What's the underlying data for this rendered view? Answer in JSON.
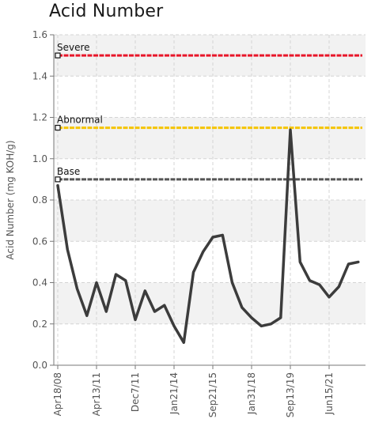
{
  "chart_data": {
    "type": "line",
    "title": "Acid Number",
    "ylabel": "Acid Number (mg KOH/g)",
    "xlabel": "",
    "ylim": [
      0,
      1.6
    ],
    "yticks": [
      "0.0",
      "0.2",
      "0.4",
      "0.6",
      "0.8",
      "1.0",
      "1.2",
      "1.4",
      "1.6"
    ],
    "xticks": [
      "Apr18/08",
      "Apr13/11",
      "Dec7/11",
      "Jan21/14",
      "Sep21/15",
      "Jan31/18",
      "Sep13/19",
      "Jun15/21"
    ],
    "grid": true,
    "thresholds": [
      {
        "label": "Severe",
        "value": 1.5,
        "color": "#e8162a"
      },
      {
        "label": "Abnormal",
        "value": 1.15,
        "color": "#f5c400"
      },
      {
        "label": "Base",
        "value": 0.9,
        "color": "#555555"
      }
    ],
    "series": [
      {
        "color": "#3c3c3c",
        "x": [
          0,
          0.25,
          0.5,
          0.75,
          1.0,
          1.25,
          1.5,
          1.75,
          2.0,
          2.25,
          2.5,
          2.75,
          3.0,
          3.25,
          3.5,
          3.75,
          4.0,
          4.25,
          4.5,
          4.75,
          5.0,
          5.25,
          5.5,
          5.75,
          6.0,
          6.25,
          6.5,
          6.75,
          7.0,
          7.25,
          7.5,
          7.75
        ],
        "values": [
          0.87,
          0.56,
          0.37,
          0.24,
          0.4,
          0.26,
          0.44,
          0.41,
          0.22,
          0.36,
          0.26,
          0.29,
          0.19,
          0.11,
          0.45,
          0.55,
          0.62,
          0.63,
          0.4,
          0.28,
          0.23,
          0.19,
          0.2,
          0.23,
          1.14,
          0.5,
          0.41,
          0.39,
          0.33,
          0.38,
          0.49,
          0.5
        ]
      }
    ]
  }
}
